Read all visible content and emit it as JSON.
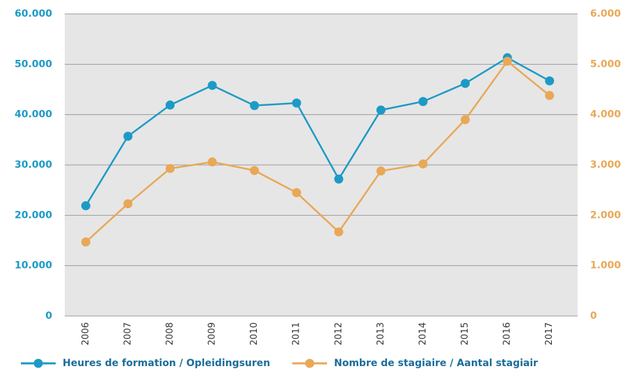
{
  "chart_data": {
    "type": "line",
    "categories": [
      "2006",
      "2007",
      "2008",
      "2009",
      "2010",
      "2011",
      "2012",
      "2013",
      "2014",
      "2015",
      "2016",
      "2017"
    ],
    "series": [
      {
        "name": "Heures de formation / Opleidingsuren",
        "color": "#1c9ac6",
        "values": [
          21900,
          35700,
          41900,
          45800,
          41800,
          42300,
          27200,
          40900,
          42600,
          46200,
          51300,
          46700
        ]
      },
      {
        "name": "Nombre de stagiaire / Aantal  stagiair",
        "color": "#e8a857",
        "axis": "y2",
        "values": [
          1470,
          2230,
          2930,
          3060,
          2890,
          2450,
          1670,
          2880,
          3020,
          3900,
          5060,
          4380
        ]
      }
    ],
    "ylim": [
      0,
      60000
    ],
    "yticks": [
      0,
      {
        "value": 10000,
        "label": "10.000"
      },
      {
        "value": 20000,
        "label": "20.000"
      },
      {
        "value": 30000,
        "label": "30.000"
      },
      {
        "value": 40000,
        "label": "40.000"
      },
      {
        "value": 50000,
        "label": "50.000"
      },
      {
        "value": 60000,
        "label": "60.000"
      }
    ],
    "y2lim": [
      0,
      6000
    ],
    "y2ticks": [
      0,
      {
        "value": 1000,
        "label": "1.000"
      },
      {
        "value": 2000,
        "label": "2.000"
      },
      {
        "value": 3000,
        "label": "3.000"
      },
      {
        "value": 4000,
        "label": "4.000"
      },
      {
        "value": 5000,
        "label": "5.000"
      },
      {
        "value": 6000,
        "label": "6.000"
      }
    ],
    "grid": true,
    "legend": "bottom"
  }
}
